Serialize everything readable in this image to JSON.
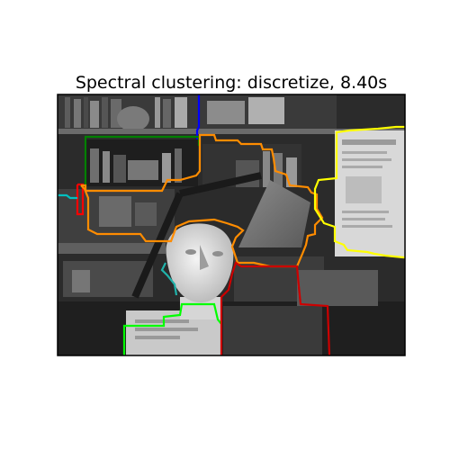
{
  "chart_data": {
    "type": "image-segmentation",
    "title": "Spectral clustering: discretize, 8.40s",
    "xlabel": "",
    "ylabel": "",
    "axes_visible": false,
    "grid": false,
    "image_description": "grayscale photograph of a plaster bust of a face in front of shelves, a desk lamp and a poster",
    "contours": [
      {
        "name": "contour-blue",
        "color": "#0000ff"
      },
      {
        "name": "contour-green",
        "color": "#008000"
      },
      {
        "name": "contour-red",
        "color": "#ff0000"
      },
      {
        "name": "contour-cyan",
        "color": "#00bfbf"
      },
      {
        "name": "contour-magenta",
        "color": "#bf00bf"
      },
      {
        "name": "contour-yellow",
        "color": "#ffff00"
      },
      {
        "name": "contour-lime",
        "color": "#00ff00"
      },
      {
        "name": "contour-orange",
        "color": "#ff8c00"
      },
      {
        "name": "contour-teal",
        "color": "#20b2aa"
      },
      {
        "name": "contour-darkred",
        "color": "#cc0000"
      }
    ]
  }
}
